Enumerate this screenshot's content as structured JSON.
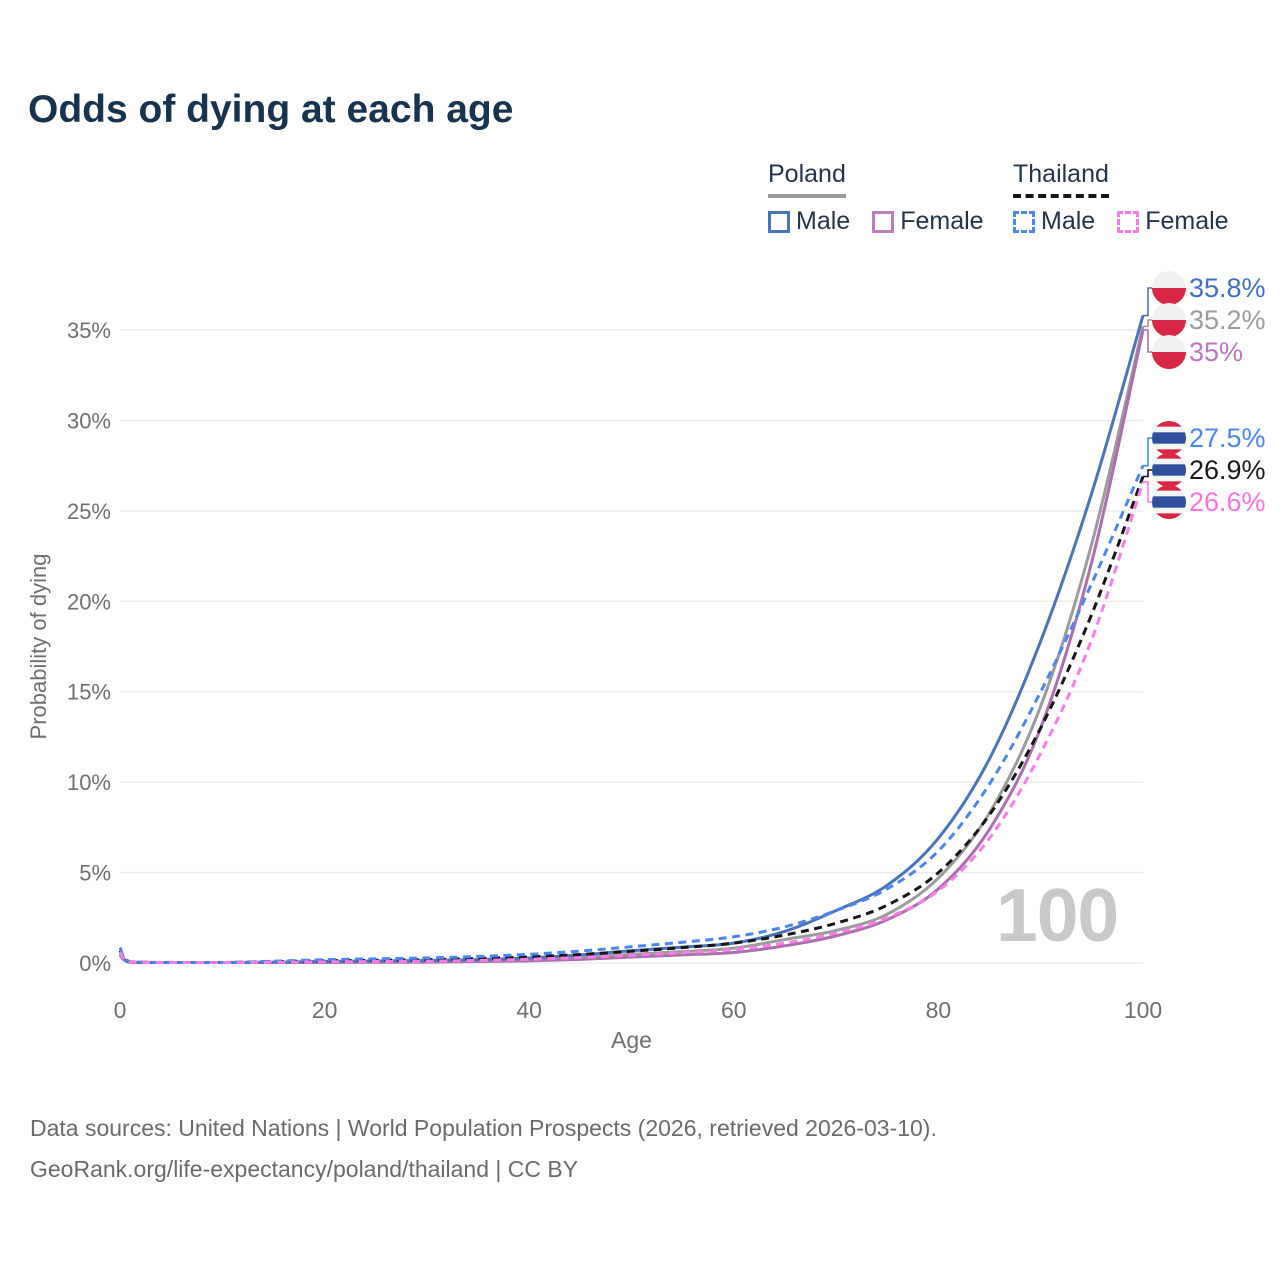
{
  "title": "Odds of dying at each age",
  "legend": {
    "groups": [
      {
        "title": "Poland",
        "line_style": "solid",
        "underline_color": "#9b9b9b",
        "items": [
          {
            "label": "Male",
            "color": "#4a74b9"
          },
          {
            "label": "Female",
            "color": "#bb7fbd"
          }
        ]
      },
      {
        "title": "Thailand",
        "line_style": "dashed",
        "underline_color": "#161616",
        "items": [
          {
            "label": "Male",
            "color": "#4b86f0"
          },
          {
            "label": "Female",
            "color": "#fb7ce8"
          }
        ]
      }
    ]
  },
  "axes": {
    "y": {
      "title": "Probability of dying",
      "ticks": [
        "0%",
        "5%",
        "10%",
        "15%",
        "20%",
        "25%",
        "30%",
        "35%"
      ],
      "tick_values": [
        0,
        5,
        10,
        15,
        20,
        25,
        30,
        35
      ],
      "range": [
        0,
        37.5
      ]
    },
    "x": {
      "title": "Age",
      "ticks": [
        "0",
        "20",
        "40",
        "60",
        "80",
        "100"
      ],
      "tick_values": [
        0,
        20,
        40,
        60,
        80,
        100
      ],
      "range": [
        0,
        100
      ]
    }
  },
  "watermark": "100",
  "footer": {
    "line1": "Data sources: United Nations | World Population Prospects (2026, retrieved 2026-03-10).",
    "line2": "GeoRank.org/life-expectancy/poland/thailand | CC BY"
  },
  "chart_data": {
    "type": "line",
    "title": "Odds of dying at each age",
    "xlabel": "Age",
    "ylabel": "Probability of dying",
    "x": [
      0,
      1,
      5,
      10,
      15,
      20,
      25,
      30,
      35,
      40,
      45,
      50,
      55,
      60,
      65,
      70,
      75,
      80,
      85,
      90,
      95,
      100
    ],
    "y_unit": "percent",
    "grid": true,
    "series": [
      {
        "name": "Poland Male",
        "country": "Poland",
        "style": "solid",
        "color": "#4a74b9",
        "label_color": "#3f6fc0",
        "end_label": "35.8%",
        "values": [
          0.55,
          0.05,
          0.01,
          0.01,
          0.04,
          0.09,
          0.11,
          0.14,
          0.19,
          0.28,
          0.45,
          0.68,
          0.88,
          1.1,
          1.75,
          2.9,
          4.3,
          6.9,
          11.3,
          17.8,
          26.0,
          35.8
        ]
      },
      {
        "name": "Poland (both sexes)",
        "country": "Poland",
        "style": "solid",
        "color": "#9b9b9b",
        "label_color": "#9b9b9b",
        "end_label": "35.2%",
        "values": [
          0.5,
          0.04,
          0.01,
          0.01,
          0.03,
          0.06,
          0.08,
          0.1,
          0.14,
          0.2,
          0.32,
          0.48,
          0.63,
          0.82,
          1.3,
          1.8,
          2.7,
          4.7,
          8.3,
          14.2,
          23.2,
          35.2
        ]
      },
      {
        "name": "Poland Female",
        "country": "Poland",
        "style": "solid",
        "color": "#ab6fae",
        "label_color": "#b878ba",
        "end_label": "35%",
        "values": [
          0.45,
          0.04,
          0.01,
          0.01,
          0.02,
          0.03,
          0.04,
          0.05,
          0.08,
          0.12,
          0.2,
          0.33,
          0.45,
          0.58,
          0.95,
          1.5,
          2.4,
          4.1,
          7.4,
          13.0,
          22.2,
          35.0
        ]
      },
      {
        "name": "Thailand Male",
        "country": "Thailand",
        "style": "dashed",
        "color": "#4b86f0",
        "label_color": "#4b86f0",
        "end_label": "27.5%",
        "values": [
          0.85,
          0.07,
          0.03,
          0.03,
          0.1,
          0.18,
          0.23,
          0.28,
          0.36,
          0.48,
          0.66,
          0.9,
          1.15,
          1.45,
          2.0,
          2.9,
          4.1,
          6.2,
          9.9,
          15.0,
          21.0,
          27.5
        ]
      },
      {
        "name": "Thailand (both sexes)",
        "country": "Thailand",
        "style": "dashed",
        "color": "#161616",
        "label_color": "#1a1a1a",
        "end_label": "26.9%",
        "values": [
          0.7,
          0.06,
          0.02,
          0.02,
          0.07,
          0.12,
          0.15,
          0.19,
          0.25,
          0.34,
          0.47,
          0.65,
          0.85,
          1.1,
          1.55,
          2.2,
          3.2,
          5.0,
          8.2,
          13.0,
          19.3,
          26.9
        ]
      },
      {
        "name": "Thailand Female",
        "country": "Thailand",
        "style": "dashed",
        "color": "#fb7ce8",
        "label_color": "#fd72e2",
        "end_label": "26.6%",
        "values": [
          0.6,
          0.05,
          0.02,
          0.02,
          0.04,
          0.06,
          0.08,
          0.1,
          0.14,
          0.21,
          0.3,
          0.43,
          0.57,
          0.75,
          1.1,
          1.65,
          2.5,
          4.0,
          6.9,
          11.6,
          17.9,
          26.6
        ]
      }
    ],
    "flag_colors": {
      "poland_white": "#eff1f3",
      "poland_red": "#d92746",
      "thailand_red": "#d92746",
      "thailand_white": "#f2f4f6",
      "thailand_blue": "#2d4f9c"
    }
  }
}
